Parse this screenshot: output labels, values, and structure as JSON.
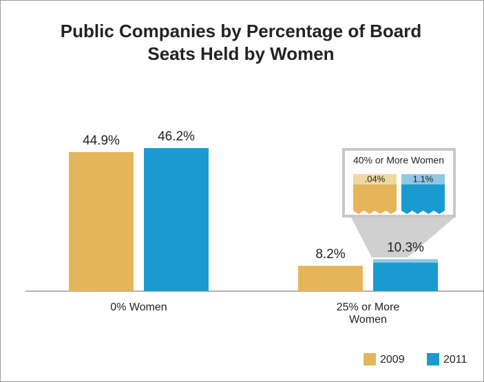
{
  "chart_data": {
    "type": "bar",
    "title": "Public Companies by Percentage of Board Seats Held by Women",
    "categories": [
      "0% Women",
      "25% or More Women"
    ],
    "series": [
      {
        "name": "2009",
        "color": "#e5b55a",
        "values": [
          44.9,
          8.2
        ],
        "value_labels": [
          "44.9%",
          "8.2%"
        ]
      },
      {
        "name": "2011",
        "color": "#1a9bcf",
        "values": [
          46.2,
          10.3
        ],
        "value_labels": [
          "46.2%",
          "10.3%"
        ]
      }
    ],
    "inset": {
      "title": "40% or More Women",
      "values": [
        0.04,
        1.1
      ],
      "value_labels": [
        ".04%",
        "1.1%"
      ],
      "colors": [
        "#f0d9a0",
        "#8fc8e3"
      ]
    },
    "ylim": [
      0,
      50
    ],
    "legend": "bottom-right"
  }
}
